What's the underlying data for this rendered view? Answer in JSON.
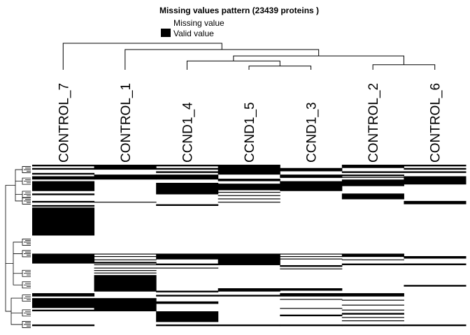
{
  "chart_data": {
    "type": "heatmap",
    "title": "Missing values pattern (23439 proteins )",
    "legend": {
      "placement": "top-center",
      "items": [
        {
          "label": "Missing value",
          "color": "#ffffff"
        },
        {
          "label": "Valid value",
          "color": "#000000"
        }
      ]
    },
    "columns": [
      "CONTROL_7",
      "CONTROL_1",
      "CCND1_4",
      "CCND1_5",
      "CCND1_3",
      "CONTROL_2",
      "CONTROL_6"
    ],
    "column_dendrogram": {
      "merges": [
        {
          "left": 3,
          "right": 4,
          "height": 0.18
        },
        {
          "left": 2,
          "right": "m0",
          "height": 0.22
        },
        {
          "left": 5,
          "right": 6,
          "height": 0.19
        },
        {
          "left": "m1",
          "right": "m2",
          "height": 0.26
        },
        {
          "left": 1,
          "right": "m3",
          "height": 0.31
        },
        {
          "left": 0,
          "right": "m4",
          "height": 0.36
        }
      ]
    },
    "row_dendrogram": {
      "shown": true,
      "clusters": [
        0.03,
        0.1,
        0.18,
        0.22,
        0.47,
        0.54,
        0.66,
        0.73,
        0.81,
        0.9,
        0.97
      ]
    },
    "valid_value_segments": [
      [
        [
          0.0,
          0.01
        ],
        [
          0.02,
          0.03
        ],
        [
          0.05,
          0.06
        ],
        [
          0.07,
          0.09
        ],
        [
          0.1,
          0.16
        ],
        [
          0.175,
          0.185
        ],
        [
          0.22,
          0.23
        ],
        [
          0.245,
          0.255
        ],
        [
          0.26,
          0.43
        ],
        [
          0.54,
          0.6
        ],
        [
          0.78,
          0.8
        ],
        [
          0.81,
          0.87
        ],
        [
          0.88,
          0.89
        ],
        [
          0.97,
          0.98
        ]
      ],
      [
        [
          0.0,
          0.03
        ],
        [
          0.06,
          0.09
        ],
        [
          0.225,
          0.23
        ],
        [
          0.54,
          0.545
        ],
        [
          0.555,
          0.56
        ],
        [
          0.575,
          0.58
        ],
        [
          0.59,
          0.6
        ],
        [
          0.605,
          0.61
        ],
        [
          0.625,
          0.63
        ],
        [
          0.64,
          0.645
        ],
        [
          0.655,
          0.66
        ],
        [
          0.67,
          0.77
        ],
        [
          0.81,
          0.89
        ]
      ],
      [
        [
          0.0,
          0.01
        ],
        [
          0.02,
          0.03
        ],
        [
          0.04,
          0.05
        ],
        [
          0.06,
          0.09
        ],
        [
          0.11,
          0.18
        ],
        [
          0.24,
          0.25
        ],
        [
          0.54,
          0.575
        ],
        [
          0.6,
          0.61
        ],
        [
          0.625,
          0.63
        ],
        [
          0.765,
          0.775
        ],
        [
          0.79,
          0.8
        ],
        [
          0.83,
          0.845
        ],
        [
          0.89,
          0.955
        ],
        [
          0.97,
          0.98
        ]
      ],
      [
        [
          0.0,
          0.06
        ],
        [
          0.085,
          0.1
        ],
        [
          0.115,
          0.155
        ],
        [
          0.165,
          0.17
        ],
        [
          0.185,
          0.19
        ],
        [
          0.205,
          0.21
        ],
        [
          0.225,
          0.23
        ],
        [
          0.54,
          0.61
        ],
        [
          0.75,
          0.77
        ],
        [
          0.79,
          0.8
        ],
        [
          0.97,
          0.98
        ]
      ],
      [
        [
          0.02,
          0.04
        ],
        [
          0.06,
          0.08
        ],
        [
          0.1,
          0.16
        ],
        [
          0.54,
          0.545
        ],
        [
          0.555,
          0.56
        ],
        [
          0.57,
          0.575
        ],
        [
          0.61,
          0.62
        ],
        [
          0.63,
          0.635
        ],
        [
          0.75,
          0.765
        ],
        [
          0.78,
          0.8
        ],
        [
          0.815,
          0.82
        ],
        [
          0.87,
          0.875
        ],
        [
          0.91,
          0.92
        ],
        [
          0.97,
          0.98
        ]
      ],
      [
        [
          0.0,
          0.02
        ],
        [
          0.04,
          0.05
        ],
        [
          0.06,
          0.07
        ],
        [
          0.075,
          0.08
        ],
        [
          0.09,
          0.13
        ],
        [
          0.175,
          0.21
        ],
        [
          0.54,
          0.56
        ],
        [
          0.575,
          0.58
        ],
        [
          0.6,
          0.61
        ],
        [
          0.78,
          0.8
        ],
        [
          0.82,
          0.825
        ],
        [
          0.85,
          0.855
        ],
        [
          0.88,
          0.885
        ],
        [
          0.9,
          0.91
        ],
        [
          0.925,
          0.93
        ],
        [
          0.945,
          0.95
        ],
        [
          0.97,
          0.98
        ]
      ],
      [
        [
          0.0,
          0.01
        ],
        [
          0.02,
          0.03
        ],
        [
          0.04,
          0.05
        ],
        [
          0.07,
          0.12
        ],
        [
          0.22,
          0.24
        ],
        [
          0.555,
          0.57
        ],
        [
          0.6,
          0.61
        ],
        [
          0.6,
          0.605
        ],
        [
          0.73,
          0.74
        ],
        [
          0.97,
          0.98
        ]
      ]
    ]
  }
}
